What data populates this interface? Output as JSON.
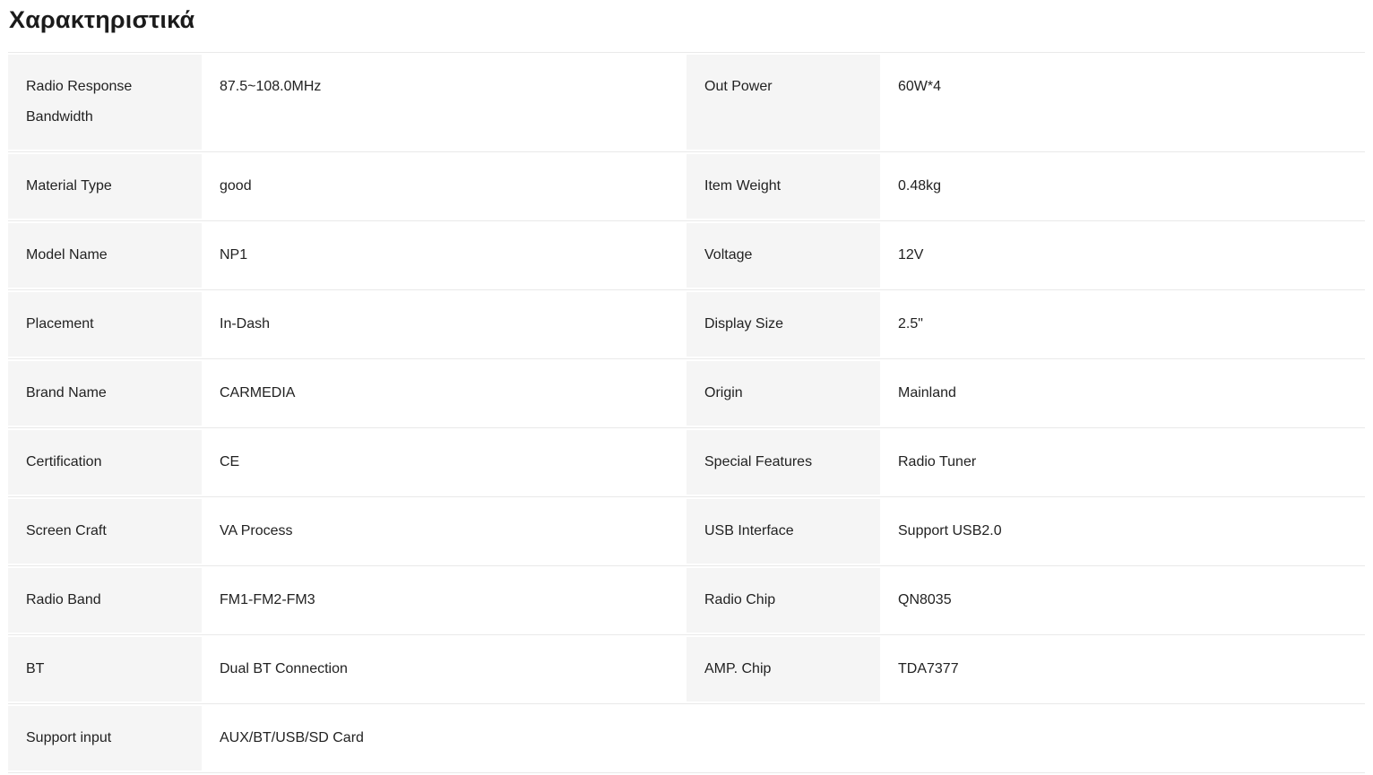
{
  "page": {
    "title": "Χαρακτηριστικά"
  },
  "colors": {
    "label_bg": "#f5f5f5",
    "border": "#e9e9e9",
    "text": "#222222",
    "title": "#1b1b1b"
  },
  "spec_table": {
    "rows": [
      {
        "cells": [
          {
            "label": "Radio Response Bandwidth",
            "value": "87.5~108.0MHz"
          },
          {
            "label": "Out Power",
            "value": "60W*4"
          }
        ]
      },
      {
        "cells": [
          {
            "label": "Material Type",
            "value": "good"
          },
          {
            "label": "Item Weight",
            "value": "0.48kg"
          }
        ]
      },
      {
        "cells": [
          {
            "label": "Model Name",
            "value": "NP1"
          },
          {
            "label": "Voltage",
            "value": "12V"
          }
        ]
      },
      {
        "cells": [
          {
            "label": "Placement",
            "value": "In-Dash"
          },
          {
            "label": "Display Size",
            "value": "2.5\""
          }
        ]
      },
      {
        "cells": [
          {
            "label": "Brand Name",
            "value": "CARMEDIA"
          },
          {
            "label": "Origin",
            "value": "Mainland"
          }
        ]
      },
      {
        "cells": [
          {
            "label": "Certification",
            "value": "CE"
          },
          {
            "label": "Special Features",
            "value": "Radio Tuner"
          }
        ]
      },
      {
        "cells": [
          {
            "label": "Screen Craft",
            "value": "VA Process"
          },
          {
            "label": "USB Interface",
            "value": "Support USB2.0"
          }
        ]
      },
      {
        "cells": [
          {
            "label": "Radio Band",
            "value": "FM1-FM2-FM3"
          },
          {
            "label": "Radio Chip",
            "value": "QN8035"
          }
        ]
      },
      {
        "cells": [
          {
            "label": "BT",
            "value": "Dual BT Connection"
          },
          {
            "label": "AMP. Chip",
            "value": "TDA7377"
          }
        ]
      },
      {
        "cells": [
          {
            "label": "Support input",
            "value": "AUX/BT/USB/SD Card"
          }
        ]
      }
    ]
  }
}
